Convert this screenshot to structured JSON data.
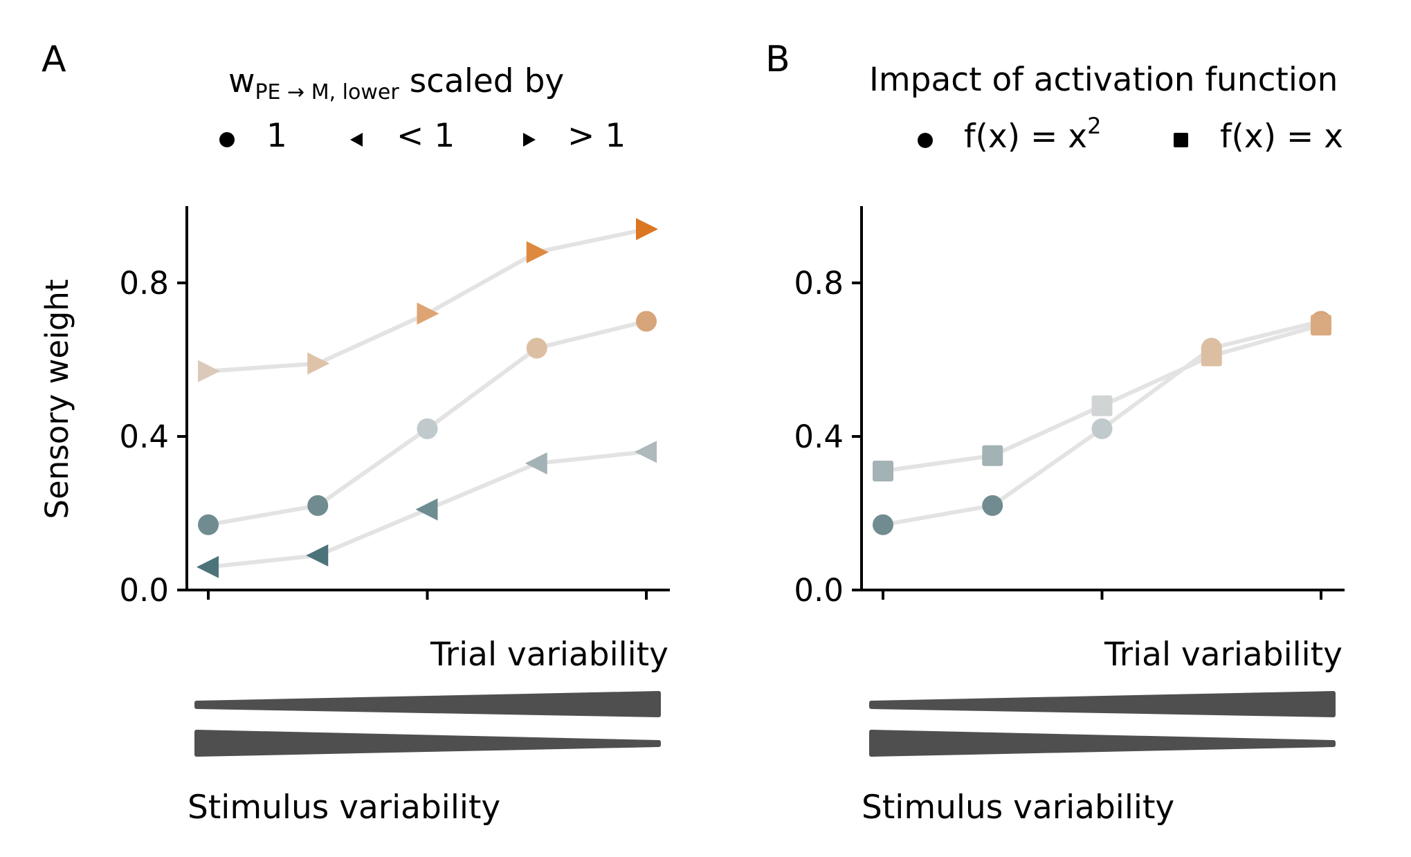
{
  "panels": [
    {
      "letter": "A",
      "legend": {
        "title_prefix": "scaled by",
        "title_w": "w",
        "title_sub": "PE → M, lower",
        "entries": [
          {
            "marker": "circle",
            "label": "1"
          },
          {
            "marker": "triangle-left",
            "label": "< 1"
          },
          {
            "marker": "triangle-right",
            "label": "> 1"
          }
        ]
      },
      "ylabel": "Sensory weight",
      "trial_label": "Trial variability",
      "stimulus_label": "Stimulus variability"
    },
    {
      "letter": "B",
      "legend": {
        "title": "Impact of activation function",
        "entries": [
          {
            "marker": "circle",
            "label_base": "f(x) = x",
            "label_sup": "2"
          },
          {
            "marker": "square",
            "label": "f(x) = x"
          }
        ]
      },
      "ylabel": "",
      "trial_label": "Trial variability",
      "stimulus_label": "Stimulus variability"
    }
  ],
  "chart_data": [
    {
      "type": "line",
      "panel": "A",
      "x": [
        1,
        2,
        3,
        4,
        5
      ],
      "xticks": [
        1,
        3,
        5
      ],
      "xtick_labels": [
        "",
        "",
        ""
      ],
      "ylim": [
        0,
        1.0
      ],
      "yticks": [
        0.0,
        0.4,
        0.8
      ],
      "ytick_labels": [
        "0.0",
        "0.4",
        "0.8"
      ],
      "ylabel": "Sensory weight",
      "xlabel": "Trial variability",
      "grid": false,
      "line_color": "#e3e3e3",
      "series": [
        {
          "name": "1",
          "marker": "circle",
          "values": [
            0.17,
            0.22,
            0.42,
            0.63,
            0.7
          ],
          "colors": [
            "#708c90",
            "#708c90",
            "#c0c9cb",
            "#dcbfa2",
            "#d7a57a"
          ]
        },
        {
          "name": "< 1",
          "marker": "triangle-left",
          "values": [
            0.06,
            0.09,
            0.21,
            0.33,
            0.36
          ],
          "colors": [
            "#4c737a",
            "#4c737a",
            "#6e8d92",
            "#a3b2b4",
            "#adb9ba"
          ]
        },
        {
          "name": "> 1",
          "marker": "triangle-right",
          "values": [
            0.57,
            0.59,
            0.72,
            0.88,
            0.94
          ],
          "colors": [
            "#dbc9b9",
            "#dec3a9",
            "#dfa473",
            "#de8a3e",
            "#db7621"
          ]
        }
      ]
    },
    {
      "type": "line",
      "panel": "B",
      "x": [
        1,
        2,
        3,
        4,
        5
      ],
      "xticks": [
        1,
        3,
        5
      ],
      "xtick_labels": [
        "",
        "",
        ""
      ],
      "ylim": [
        0,
        1.0
      ],
      "yticks": [
        0.0,
        0.4,
        0.8
      ],
      "ytick_labels": [
        "0.0",
        "0.4",
        "0.8"
      ],
      "ylabel": "",
      "xlabel": "Trial variability",
      "grid": false,
      "line_color": "#e3e3e3",
      "series": [
        {
          "name": "f(x) = x^2",
          "marker": "circle",
          "values": [
            0.17,
            0.22,
            0.42,
            0.63,
            0.7
          ],
          "colors": [
            "#708c90",
            "#708c90",
            "#c0c9cb",
            "#dcbfa2",
            "#d7a57a"
          ]
        },
        {
          "name": "f(x) = x",
          "marker": "square",
          "values": [
            0.31,
            0.35,
            0.48,
            0.61,
            0.69
          ],
          "colors": [
            "#a3b2b4",
            "#a3b2b4",
            "#d1d4d4",
            "#dcbfa2",
            "#d9aa80"
          ]
        }
      ]
    }
  ]
}
